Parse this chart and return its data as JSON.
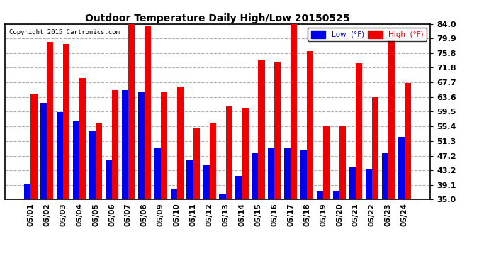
{
  "title": "Outdoor Temperature Daily High/Low 20150525",
  "copyright": "Copyright 2015 Cartronics.com",
  "legend_low": "Low  (°F)",
  "legend_high": "High  (°F)",
  "background_color": "#ffffff",
  "plot_bg_color": "#ffffff",
  "grid_color": "#b0b0b0",
  "bar_color_low": "#0000ee",
  "bar_color_high": "#ee0000",
  "ylim": [
    35.0,
    84.0
  ],
  "yticks": [
    35.0,
    39.1,
    43.2,
    47.2,
    51.3,
    55.4,
    59.5,
    63.6,
    67.7,
    71.8,
    75.8,
    79.9,
    84.0
  ],
  "dates": [
    "05/01",
    "05/02",
    "05/03",
    "05/04",
    "05/05",
    "05/06",
    "05/07",
    "05/08",
    "05/09",
    "05/10",
    "05/11",
    "05/12",
    "05/13",
    "05/14",
    "05/15",
    "05/16",
    "05/17",
    "05/18",
    "05/19",
    "05/20",
    "05/21",
    "05/22",
    "05/23",
    "05/24"
  ],
  "high": [
    64.5,
    79.0,
    78.5,
    69.0,
    56.5,
    65.5,
    84.5,
    83.5,
    65.0,
    66.5,
    55.0,
    56.5,
    61.0,
    60.5,
    74.0,
    73.5,
    84.0,
    76.5,
    55.5,
    55.5,
    73.0,
    63.5,
    79.5,
    67.5
  ],
  "low": [
    39.5,
    62.0,
    59.5,
    57.0,
    54.0,
    46.0,
    65.5,
    65.0,
    49.5,
    38.0,
    46.0,
    44.5,
    36.5,
    41.5,
    48.0,
    49.5,
    49.5,
    49.0,
    37.5,
    37.5,
    44.0,
    43.5,
    48.0,
    52.5
  ],
  "figsize": [
    6.9,
    3.75
  ],
  "dpi": 100
}
